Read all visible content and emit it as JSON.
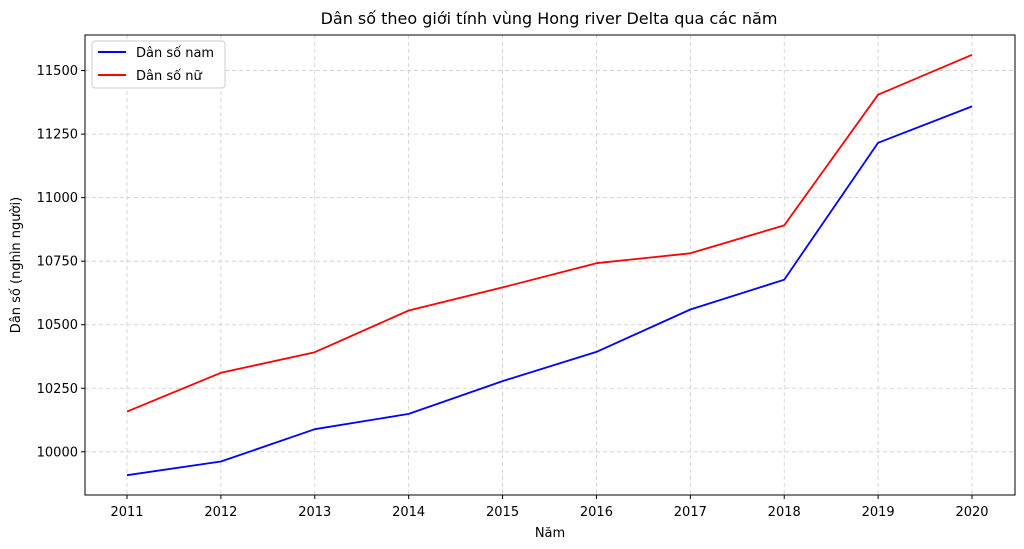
{
  "chart_data": {
    "type": "line",
    "title": "Dân số theo giới tính vùng Hong river Delta qua các năm",
    "xlabel": "Năm",
    "ylabel": "Dân số (nghìn người)",
    "x": [
      2011,
      2012,
      2013,
      2014,
      2015,
      2016,
      2017,
      2018,
      2019,
      2020
    ],
    "xticks": [
      "2011",
      "2012",
      "2013",
      "2014",
      "2015",
      "2016",
      "2017",
      "2018",
      "2019",
      "2020"
    ],
    "yticks": [
      "10000",
      "10250",
      "10500",
      "10750",
      "11000",
      "11250",
      "11500"
    ],
    "ylim": [
      9830,
      11640
    ],
    "grid": true,
    "legend_position": "top-left",
    "series": [
      {
        "name": "Dân số nam",
        "color": "#0000ff",
        "values": [
          9908,
          9962,
          10089,
          10149,
          10278,
          10393,
          10560,
          10677,
          11216,
          11359
        ]
      },
      {
        "name": "Dân số nữ",
        "color": "#ff0000",
        "values": [
          10158,
          10311,
          10392,
          10556,
          10647,
          10742,
          10781,
          10891,
          11405,
          11562
        ]
      }
    ]
  }
}
